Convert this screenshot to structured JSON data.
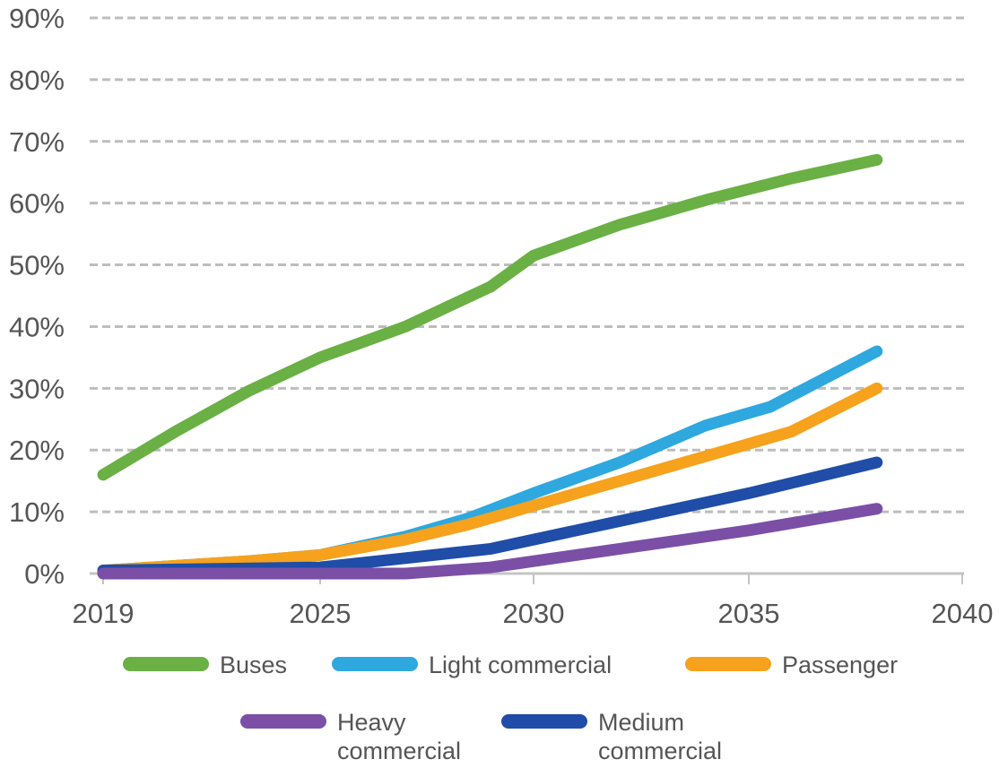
{
  "chart_data": {
    "type": "line",
    "title": "",
    "xlabel": "",
    "ylabel": "",
    "xlim": [
      2019,
      2040
    ],
    "ylim": [
      0,
      90
    ],
    "xticks": [
      2019,
      2025,
      2030,
      2035,
      2040
    ],
    "xtick_labels": [
      "2019",
      "2025",
      "2030",
      "2035",
      "2040"
    ],
    "yticks": [
      0,
      10,
      20,
      30,
      40,
      50,
      60,
      70,
      80,
      90
    ],
    "ytick_labels": [
      "0%",
      "10%",
      "20%",
      "30%",
      "40%",
      "50%",
      "60%",
      "70%",
      "80%",
      "90%"
    ],
    "grid": "horizontal dashed",
    "legend_position": "bottom",
    "series": [
      {
        "name": "Buses",
        "color": "#6ab045",
        "points": [
          [
            2019,
            16
          ],
          [
            2021,
            23
          ],
          [
            2023,
            29.5
          ],
          [
            2025,
            35
          ],
          [
            2027,
            40
          ],
          [
            2029,
            46.5
          ],
          [
            2030,
            51.5
          ],
          [
            2032,
            56.5
          ],
          [
            2034,
            60.5
          ],
          [
            2036,
            64
          ],
          [
            2038,
            67
          ]
        ]
      },
      {
        "name": "Light commercial",
        "color": "#2ea8df",
        "points": [
          [
            2019,
            0.5
          ],
          [
            2023,
            2
          ],
          [
            2025,
            3
          ],
          [
            2027,
            6
          ],
          [
            2028.5,
            9
          ],
          [
            2030,
            13
          ],
          [
            2032,
            18
          ],
          [
            2034,
            24
          ],
          [
            2035.5,
            27
          ],
          [
            2038,
            36
          ]
        ]
      },
      {
        "name": "Passenger",
        "color": "#f6a21d",
        "points": [
          [
            2019,
            0.5
          ],
          [
            2023,
            2
          ],
          [
            2025,
            3
          ],
          [
            2027,
            5.5
          ],
          [
            2028.5,
            8
          ],
          [
            2030,
            11
          ],
          [
            2032,
            15
          ],
          [
            2034,
            19
          ],
          [
            2036,
            23
          ],
          [
            2038,
            30
          ]
        ]
      },
      {
        "name": "Heavy commercial",
        "color": "#7b4fa6",
        "points": [
          [
            2019,
            0
          ],
          [
            2027,
            0
          ],
          [
            2029,
            1
          ],
          [
            2031,
            3
          ],
          [
            2033,
            5
          ],
          [
            2035,
            7
          ],
          [
            2038,
            10.5
          ]
        ]
      },
      {
        "name": "Medium commercial",
        "color": "#1f4da8",
        "points": [
          [
            2019,
            0.5
          ],
          [
            2025,
            1
          ],
          [
            2027,
            2.5
          ],
          [
            2029,
            4
          ],
          [
            2031,
            7
          ],
          [
            2033,
            10
          ],
          [
            2035,
            13
          ],
          [
            2038,
            18
          ]
        ]
      }
    ],
    "legend": [
      {
        "label": "Buses",
        "color": "#6ab045"
      },
      {
        "label": "Light commercial",
        "color": "#2ea8df"
      },
      {
        "label": "Passenger",
        "color": "#f6a21d"
      },
      {
        "label": "Heavy\ncommercial",
        "color": "#7b4fa6"
      },
      {
        "label": "Medium\ncommercial",
        "color": "#1f4da8"
      }
    ]
  }
}
